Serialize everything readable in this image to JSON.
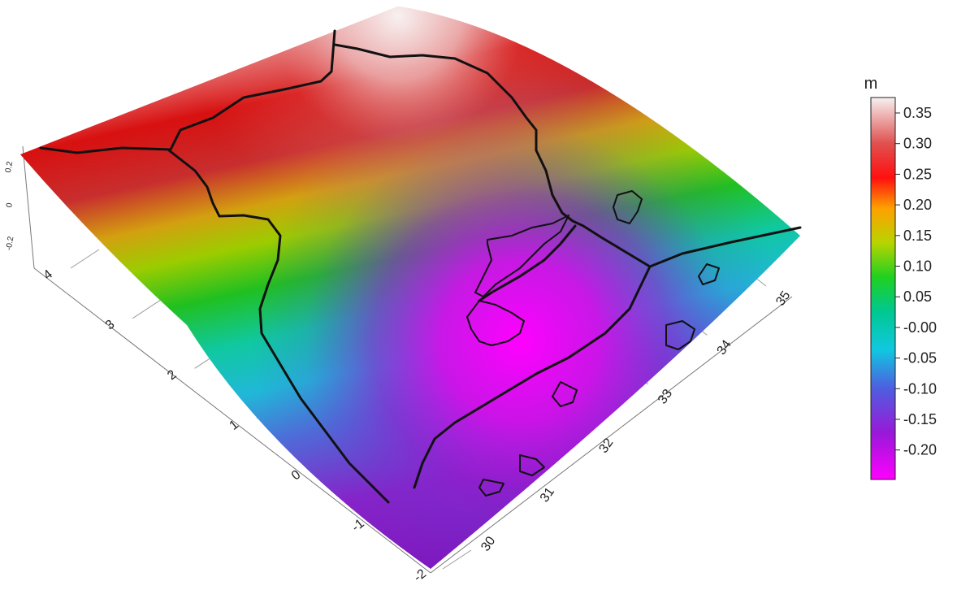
{
  "colorbar": {
    "unit": "m",
    "ticks": [
      "0.35",
      "0.30",
      "0.25",
      "0.20",
      "0.15",
      "0.10",
      "0.05",
      "-0.00",
      "-0.05",
      "-0.10",
      "-0.15",
      "-0.20"
    ],
    "stops": [
      "#ff00ff",
      "#8a1fd0",
      "#4a6be0",
      "#00d8d8",
      "#00c060",
      "#30d000",
      "#c8d000",
      "#ffa500",
      "#ff0000",
      "#d04040",
      "#f5eaea"
    ]
  },
  "axes": {
    "latitude_ticks": [
      "4",
      "3",
      "2",
      "1",
      "0",
      "-1",
      "-2"
    ],
    "longitude_ticks": [
      "30",
      "31",
      "32",
      "33",
      "34",
      "35"
    ],
    "z_ticks": [
      "0.2",
      "0",
      "-0.2"
    ]
  }
}
